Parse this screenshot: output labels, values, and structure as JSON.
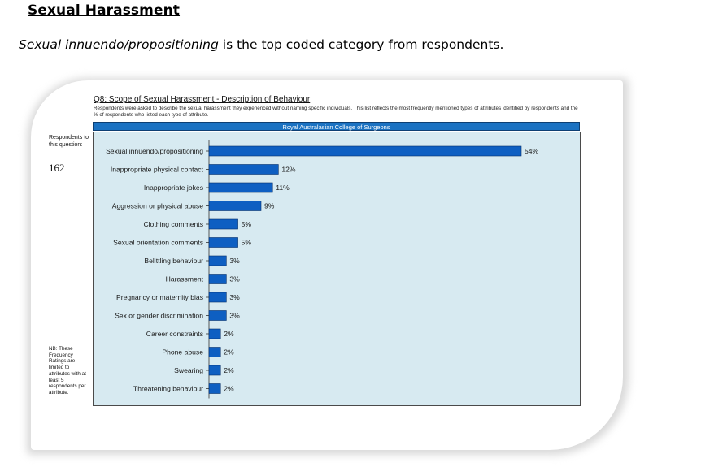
{
  "document": {
    "heading": "Sexual Harassment",
    "intro_italic": "Sexual innuendo/propositioning",
    "intro_rest": " is the top coded category from respondents."
  },
  "panel": {
    "chart_title": "Q8: Scope of Sexual Harassment - Description of Behaviour",
    "chart_description": "Respondents were asked to describe the sexual harassment they experienced without naming specific individuals.  This list reflects the most frequently mentioned types of attributes identified by respondents and the % of respondents who listed each type of attribute.",
    "college_label": "Royal Australasian College of Surgeons",
    "respondents_label": "Respondents to this question:",
    "respondents_count": "162",
    "footnote": "NB: These Frequency Ratings are limited to attributes with at least 5 respondents per attribute."
  },
  "chart_data": {
    "type": "bar",
    "orientation": "horizontal",
    "categories": [
      "Sexual innuendo/propositioning",
      "Inappropriate physical contact",
      "Inappropriate jokes",
      "Aggression or physical abuse",
      "Clothing comments",
      "Sexual orientation comments",
      "Belittling behaviour",
      "Harassment",
      "Pregnancy or maternity bias",
      "Sex or gender discrimination",
      "Career constraints",
      "Phone abuse",
      "Swearing",
      "Threatening behaviour"
    ],
    "values": [
      54,
      12,
      11,
      9,
      5,
      5,
      3,
      3,
      3,
      3,
      2,
      2,
      2,
      2
    ],
    "value_labels": [
      "54%",
      "12%",
      "11%",
      "9%",
      "5%",
      "5%",
      "3%",
      "3%",
      "3%",
      "3%",
      "2%",
      "2%",
      "2%",
      "2%"
    ],
    "xlim": [
      0,
      54
    ],
    "bar_color": "#0e5fc2",
    "background_color": "#d7eaf1",
    "grid": false,
    "legend": "none"
  }
}
